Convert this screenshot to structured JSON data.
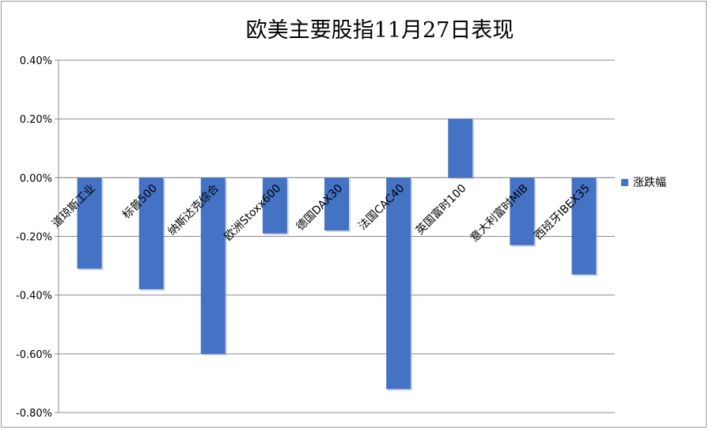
{
  "chart_data": {
    "type": "bar",
    "title": "欧美主要股指11月27日表现",
    "xlabel": "",
    "ylabel": "",
    "categories": [
      "道琼斯工业",
      "标普500",
      "纳斯达克综合",
      "欧洲Stoxx600",
      "德国DAX30",
      "法国CAC40",
      "英国富时100",
      "意大利富时MIB",
      "西班牙IBEX35"
    ],
    "series": [
      {
        "name": "涨跌幅",
        "values": [
          -0.31,
          -0.38,
          -0.6,
          -0.19,
          -0.18,
          -0.72,
          0.2,
          -0.23,
          -0.33
        ]
      }
    ],
    "ylim": [
      -0.8,
      0.4
    ],
    "yticks": [
      -0.8,
      -0.6,
      -0.4,
      -0.2,
      0.0,
      0.2,
      0.4
    ],
    "ytick_labels": [
      "-0.80%",
      "-0.60%",
      "-0.40%",
      "-0.20%",
      "0.00%",
      "0.20%",
      "0.40%"
    ],
    "grid": true,
    "legend_position": "right",
    "bar_color": "#4472C4"
  }
}
